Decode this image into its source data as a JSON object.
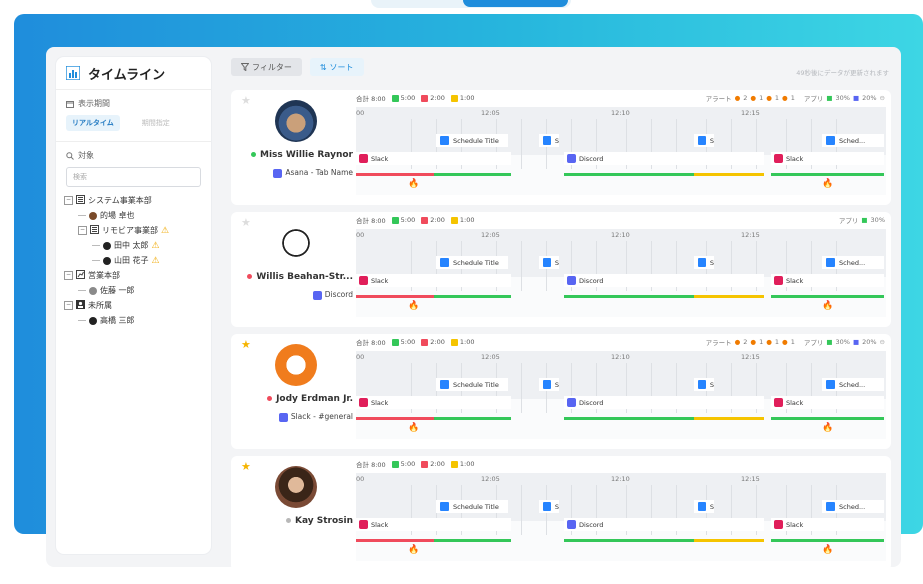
{
  "sidebar": {
    "title": "タイムライン",
    "period_label": "表示期間",
    "mode_realtime": "リアルタイム",
    "mode_range": "期間指定",
    "target_label": "対象",
    "search_placeholder": "検索",
    "tree": [
      {
        "label": "システム事業本部",
        "level": 0,
        "kind": "dept",
        "icon": "building-icon"
      },
      {
        "label": "的場 卓也",
        "level": 1,
        "kind": "user",
        "icon": "avatar"
      },
      {
        "label": "リモビア事業部",
        "level": 1,
        "kind": "dept",
        "icon": "building-icon",
        "warn": true
      },
      {
        "label": "田中 太郎",
        "level": 2,
        "kind": "user",
        "icon": "avatar",
        "warn": true
      },
      {
        "label": "山田 花子",
        "level": 2,
        "kind": "user",
        "icon": "avatar",
        "warn": true
      },
      {
        "label": "営業本部",
        "level": 0,
        "kind": "dept",
        "icon": "chart-icon"
      },
      {
        "label": "佐藤 一郎",
        "level": 1,
        "kind": "user",
        "icon": "avatar"
      },
      {
        "label": "未所属",
        "level": 0,
        "kind": "dept",
        "icon": "person-box-icon"
      },
      {
        "label": "高橋 三郎",
        "level": 1,
        "kind": "user",
        "icon": "avatar"
      }
    ]
  },
  "toolbar": {
    "filter_label": "フィルター",
    "sort_label": "ソート",
    "update_note": "49秒後にデータが更新されます"
  },
  "summary": {
    "total": "合計 8:00",
    "green": "5:00",
    "red": "2:00",
    "yellow": "1:00"
  },
  "timeline_ticks": [
    "00",
    "12:05",
    "12:10",
    "12:15"
  ],
  "users": [
    {
      "name": "Miss Willie Raynor",
      "status_color": "#34c759",
      "app": "Asana - Tab Name",
      "starred": false,
      "alerts": "アラート",
      "alert_counts": [
        "2",
        "1",
        "1",
        "1"
      ],
      "apps_label": "アプリ",
      "apps_pct": [
        "30%",
        "20%"
      ],
      "bars": {
        "schedule": "Schedule Title",
        "s": "S",
        "discord": "Discord",
        "slack": "Slack",
        "sched_short": "Sched..."
      }
    },
    {
      "name": "Willis Beahan-Str...",
      "status_color": "#f04b5c",
      "app": "Discord",
      "starred": false,
      "alerts": "",
      "alert_counts": [],
      "apps_label": "アプリ",
      "apps_pct": [
        "30%"
      ],
      "bars": {
        "schedule": "Schedule Title",
        "s": "S",
        "discord": "Discord",
        "slack": "Slack",
        "sched_short": "Sched..."
      }
    },
    {
      "name": "Jody Erdman Jr.",
      "status_color": "#f04b5c",
      "app": "Slack - #general",
      "starred": true,
      "alerts": "アラート",
      "alert_counts": [
        "2",
        "1",
        "1",
        "1"
      ],
      "apps_label": "アプリ",
      "apps_pct": [
        "30%",
        "20%"
      ],
      "bars": {
        "schedule": "Schedule Title",
        "s": "S",
        "discord": "Discord",
        "slack": "Slack",
        "sched_short": "Sched..."
      }
    },
    {
      "name": "Kay Strosin",
      "status_color": "#b8b8b8",
      "app": "",
      "starred": true,
      "alerts": "",
      "alert_counts": [],
      "apps_label": "",
      "apps_pct": [],
      "bars": {
        "schedule": "Schedule Title",
        "s": "S",
        "discord": "Discord",
        "slack": "Slack",
        "sched_short": "Sched..."
      }
    }
  ]
}
